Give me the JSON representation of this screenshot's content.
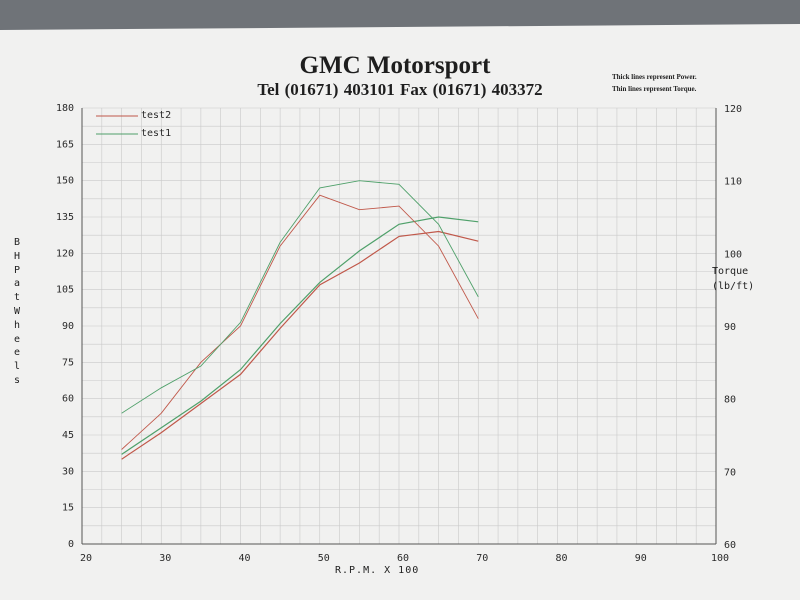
{
  "header": {
    "title": "GMC Motorsport",
    "subtitle": "Tel (01671) 403101  Fax (01671) 403372",
    "note_line1": "Thick lines represent Power.",
    "note_line2": "Thin lines represent Torque."
  },
  "colors": {
    "paper": "#f1f1f0",
    "grid": "#c9c9c9",
    "test1": "#4fa06a",
    "test2": "#c0584a"
  },
  "chart_data": {
    "type": "line",
    "xlabel": "R.P.M. X 100",
    "ylabel": "BHP at Wheels",
    "y2label": "Torque\n(lb/ft)",
    "xlim": [
      20,
      100
    ],
    "ylim": [
      0,
      180
    ],
    "y2lim": [
      60,
      120
    ],
    "x_ticks": [
      20,
      30,
      40,
      50,
      60,
      70,
      80,
      90,
      100
    ],
    "y_ticks": [
      0,
      15,
      30,
      45,
      60,
      75,
      90,
      105,
      120,
      135,
      150,
      165,
      180
    ],
    "y2_ticks": [
      60,
      70,
      80,
      90,
      100,
      110,
      120
    ],
    "grid": true,
    "legend_position": "top-left",
    "legend": [
      "test2",
      "test1"
    ],
    "x": [
      25,
      30,
      35,
      40,
      45,
      50,
      55,
      60,
      65,
      70
    ],
    "series": [
      {
        "name": "test2",
        "axis": "power",
        "values": [
          35,
          46,
          58,
          70,
          89,
          107,
          116,
          127,
          129,
          125
        ]
      },
      {
        "name": "test1",
        "axis": "power",
        "values": [
          37,
          48,
          59,
          72,
          91,
          108,
          121,
          132,
          135,
          133
        ]
      },
      {
        "name": "test2",
        "axis": "torque",
        "values": [
          73,
          78,
          85,
          90,
          101,
          108,
          106,
          106.5,
          101,
          91
        ]
      },
      {
        "name": "test1",
        "axis": "torque",
        "values": [
          78,
          81.5,
          84.5,
          90.5,
          101.5,
          109,
          110,
          109.5,
          104,
          94
        ]
      }
    ]
  }
}
